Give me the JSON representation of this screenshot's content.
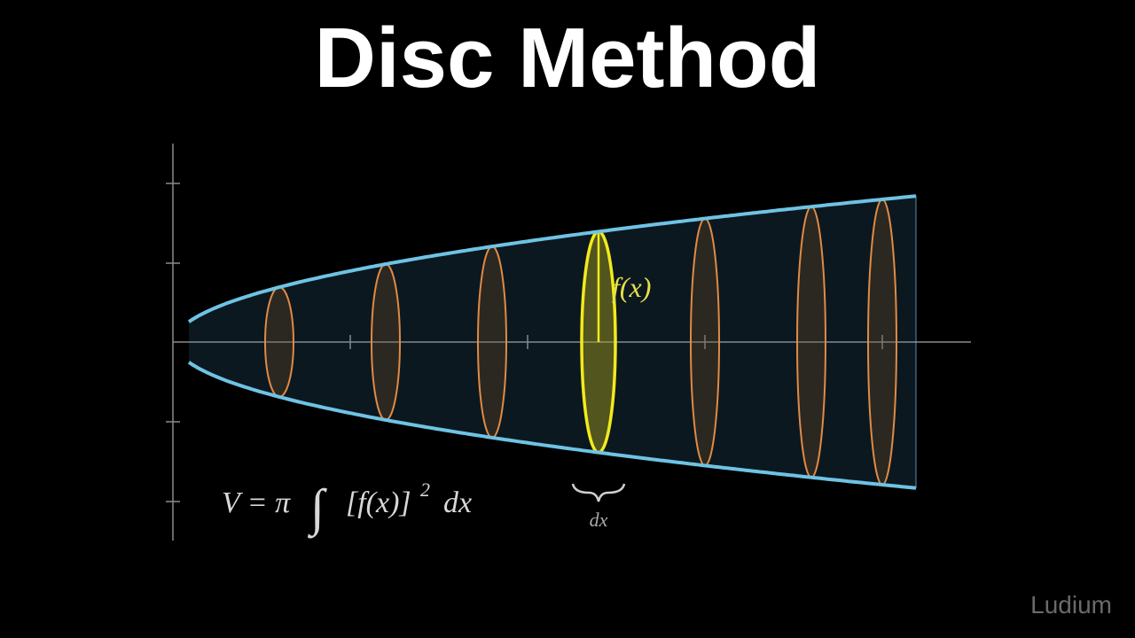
{
  "header": {
    "title": "Disc Method"
  },
  "diagram": {
    "radius_label": "f(x)",
    "width_label": "dx"
  },
  "formula": {
    "lhs": "V = π",
    "integral": "∫",
    "integrand": "[f(x)]",
    "exponent": "2",
    "differential": "dx"
  },
  "watermark": "Ludium"
}
